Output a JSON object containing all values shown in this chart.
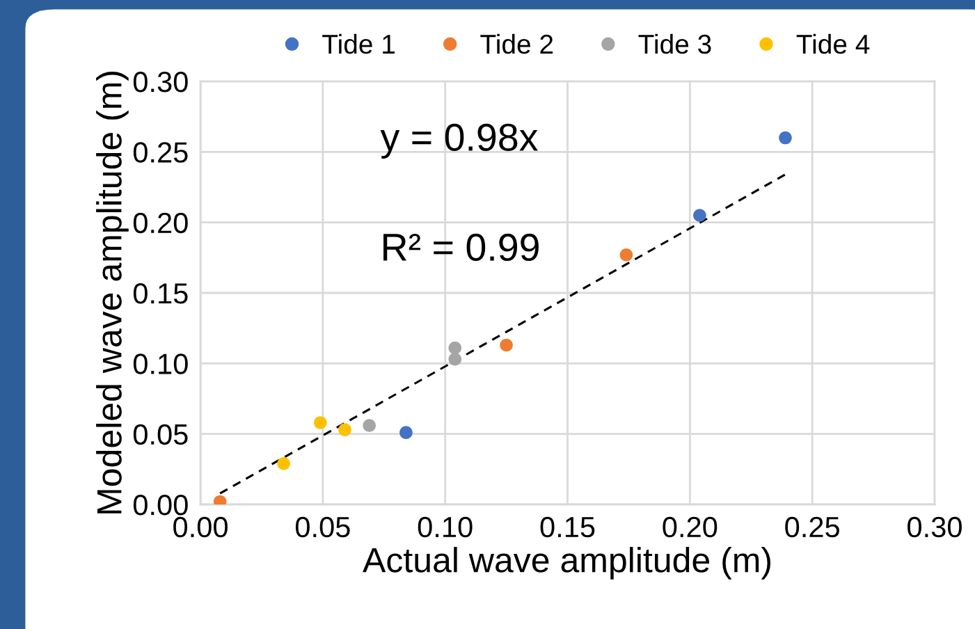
{
  "chart_data": {
    "type": "scatter",
    "xlabel": "Actual wave amplitude (m)",
    "ylabel": "Modeled wave amplitude (m)",
    "xlim": [
      0,
      0.3
    ],
    "ylim": [
      0,
      0.3
    ],
    "xticks": [
      {
        "value": 0,
        "label": "0.00"
      },
      {
        "value": 0.05,
        "label": "0.05"
      },
      {
        "value": 0.1,
        "label": "0.10"
      },
      {
        "value": 0.15,
        "label": "0.15"
      },
      {
        "value": 0.2,
        "label": "0.20"
      },
      {
        "value": 0.25,
        "label": "0.25"
      },
      {
        "value": 0.3,
        "label": "0.30"
      }
    ],
    "yticks": [
      {
        "value": 0,
        "label": "0.00"
      },
      {
        "value": 0.05,
        "label": "0.05"
      },
      {
        "value": 0.1,
        "label": "0.10"
      },
      {
        "value": 0.15,
        "label": "0.15"
      },
      {
        "value": 0.2,
        "label": "0.20"
      },
      {
        "value": 0.25,
        "label": "0.25"
      },
      {
        "value": 0.3,
        "label": "0.30"
      }
    ],
    "grid": true,
    "legend": "top",
    "marker": "circle",
    "series": [
      {
        "name": "Tide 1",
        "color": "#4472c4",
        "x": [
          0.239,
          0.204,
          0.084
        ],
        "values": [
          0.26,
          0.205,
          0.051
        ]
      },
      {
        "name": "Tide 2",
        "color": "#ed7d31",
        "x": [
          0.008,
          0.125,
          0.174
        ],
        "values": [
          0.002,
          0.113,
          0.177
        ]
      },
      {
        "name": "Tide 3",
        "color": "#a5a5a5",
        "x": [
          0.104,
          0.104,
          0.069
        ],
        "values": [
          0.111,
          0.103,
          0.056
        ]
      },
      {
        "name": "Tide 4",
        "color": "#ffc000",
        "x": [
          0.034,
          0.049,
          0.059
        ],
        "values": [
          0.029,
          0.058,
          0.053
        ]
      },
      {
        "type": "line",
        "color": "#000000",
        "line_style": "dashed",
        "marker": "none",
        "x": [
          0.008,
          0.239
        ],
        "values": [
          0.0078,
          0.234
        ]
      }
    ],
    "annotations": [
      "y = 0.98x",
      "R² = 0.99"
    ]
  }
}
